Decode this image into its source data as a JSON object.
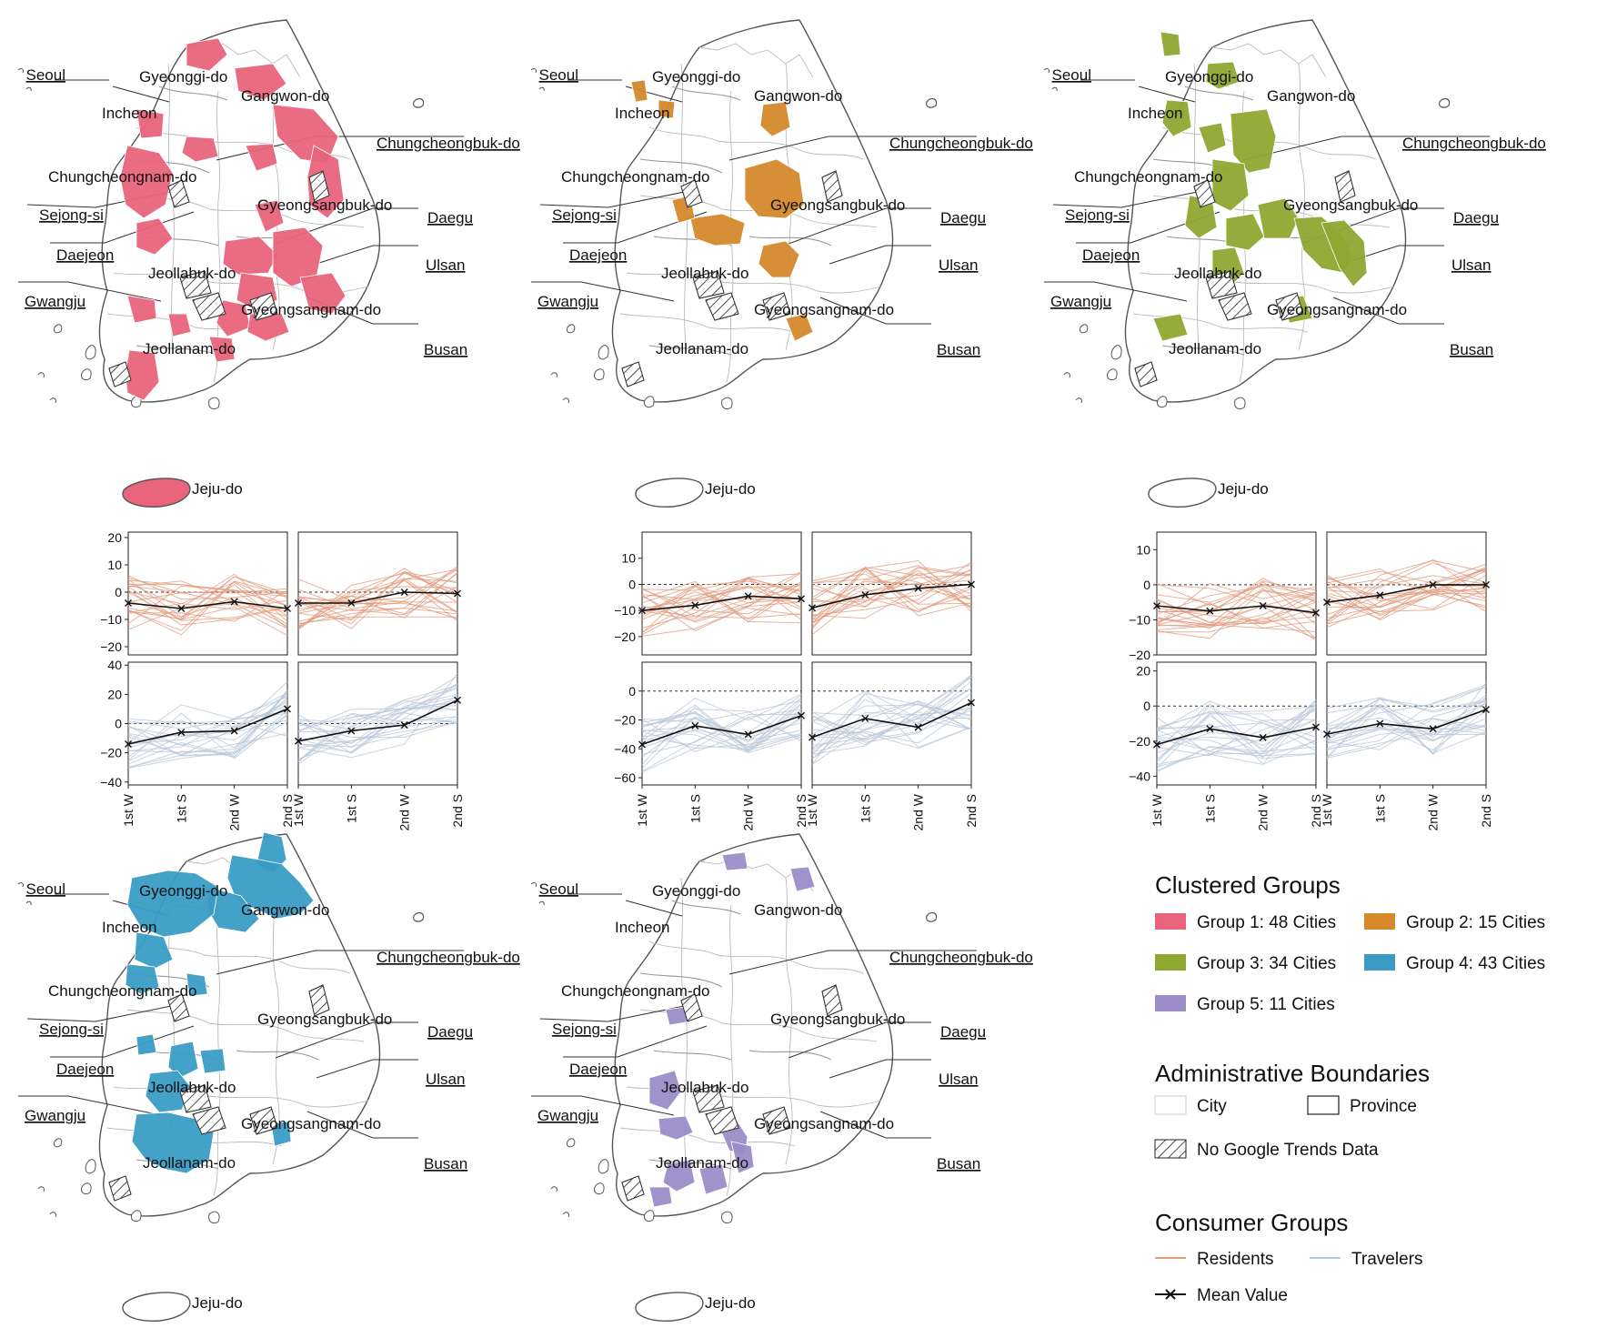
{
  "map_labels": {
    "seoul": "Seoul",
    "incheon": "Incheon",
    "gyeonggi": "Gyeonggi-do",
    "gangwon": "Gangwon-do",
    "chungbuk": "Chungcheongbuk-do",
    "chungnam": "Chungcheongnam-do",
    "sejong": "Sejong-si",
    "daejeon": "Daejeon",
    "gyeongbuk": "Gyeongsangbuk-do",
    "daegu": "Daegu",
    "jeonbuk": "Jeollabuk-do",
    "ulsan": "Ulsan",
    "gwangju": "Gwangju",
    "gyeongnam": "Gyeongsangnam-do",
    "jeonnam": "Jeollanam-do",
    "busan": "Busan",
    "jeju": "Jeju-do"
  },
  "groups": [
    {
      "id": 1,
      "color": "#e8647c",
      "legend": "Group 1: 48 Cities"
    },
    {
      "id": 2,
      "color": "#d4892b",
      "legend": "Group 2: 15 Cities"
    },
    {
      "id": 3,
      "color": "#8fa832",
      "legend": "Group 3: 34 Cities"
    },
    {
      "id": 4,
      "color": "#3a9cc4",
      "legend": "Group 4: 43 Cities"
    },
    {
      "id": 5,
      "color": "#9b8cc8",
      "legend": "Group 5: 11 Cities"
    }
  ],
  "x_ticks": [
    "1st W",
    "1st S",
    "2nd W",
    "2nd S"
  ],
  "panel_ticks": [
    {
      "res": [
        "20",
        "10",
        "0",
        "−10",
        "−20"
      ],
      "trv": [
        "40",
        "20",
        "0",
        "−20",
        "−40"
      ]
    },
    {
      "res": [
        "10",
        "0",
        "−10",
        "−20"
      ],
      "trv": [
        "0",
        "−20",
        "−40",
        "−60"
      ]
    },
    {
      "res": [
        "10",
        "0",
        "−10",
        "−20"
      ],
      "trv": [
        "20",
        "0",
        "−20",
        "−40"
      ]
    }
  ],
  "chart_data": [
    {
      "type": "line",
      "group": 1,
      "x": [
        "1st W",
        "1st S",
        "2nd W",
        "2nd S"
      ],
      "residents": {
        "ylim": [
          -23,
          22
        ],
        "left_mean": [
          -4,
          -6,
          -3.5,
          -6
        ],
        "right_mean": [
          -4,
          -4,
          0,
          -0.5
        ]
      },
      "travelers": {
        "ylim": [
          -42,
          42
        ],
        "left_mean": [
          -14,
          -6,
          -5,
          10
        ],
        "right_mean": [
          -12,
          -5,
          -1,
          16
        ]
      }
    },
    {
      "type": "line",
      "group": 2,
      "x": [
        "1st W",
        "1st S",
        "2nd W",
        "2nd S"
      ],
      "residents": {
        "ylim": [
          -27,
          20
        ],
        "left_mean": [
          -10,
          -8,
          -4.5,
          -5.5
        ],
        "right_mean": [
          -9,
          -4,
          -1.5,
          0
        ]
      },
      "travelers": {
        "ylim": [
          -65,
          20
        ],
        "left_mean": [
          -37,
          -24,
          -30,
          -17
        ],
        "right_mean": [
          -32,
          -19,
          -25,
          -8
        ]
      }
    },
    {
      "type": "line",
      "group": 3,
      "x": [
        "1st W",
        "1st S",
        "2nd W",
        "2nd S"
      ],
      "residents": {
        "ylim": [
          -20,
          15
        ],
        "left_mean": [
          -6,
          -7.5,
          -6,
          -8
        ],
        "right_mean": [
          -5,
          -3,
          0,
          0
        ]
      },
      "travelers": {
        "ylim": [
          -45,
          25
        ],
        "left_mean": [
          -22,
          -13,
          -18,
          -12
        ],
        "right_mean": [
          -16,
          -10,
          -13,
          -2
        ]
      }
    }
  ],
  "legend": {
    "clustered_title": "Clustered Groups",
    "admin_title": "Administrative Boundaries",
    "city": "City",
    "province": "Province",
    "no_data": "No Google Trends Data",
    "consumer_title": "Consumer Groups",
    "residents": "Residents",
    "travelers": "Travelers",
    "mean": "Mean Value",
    "residents_color": "#e09a7c",
    "travelers_color": "#b7c6d8"
  }
}
